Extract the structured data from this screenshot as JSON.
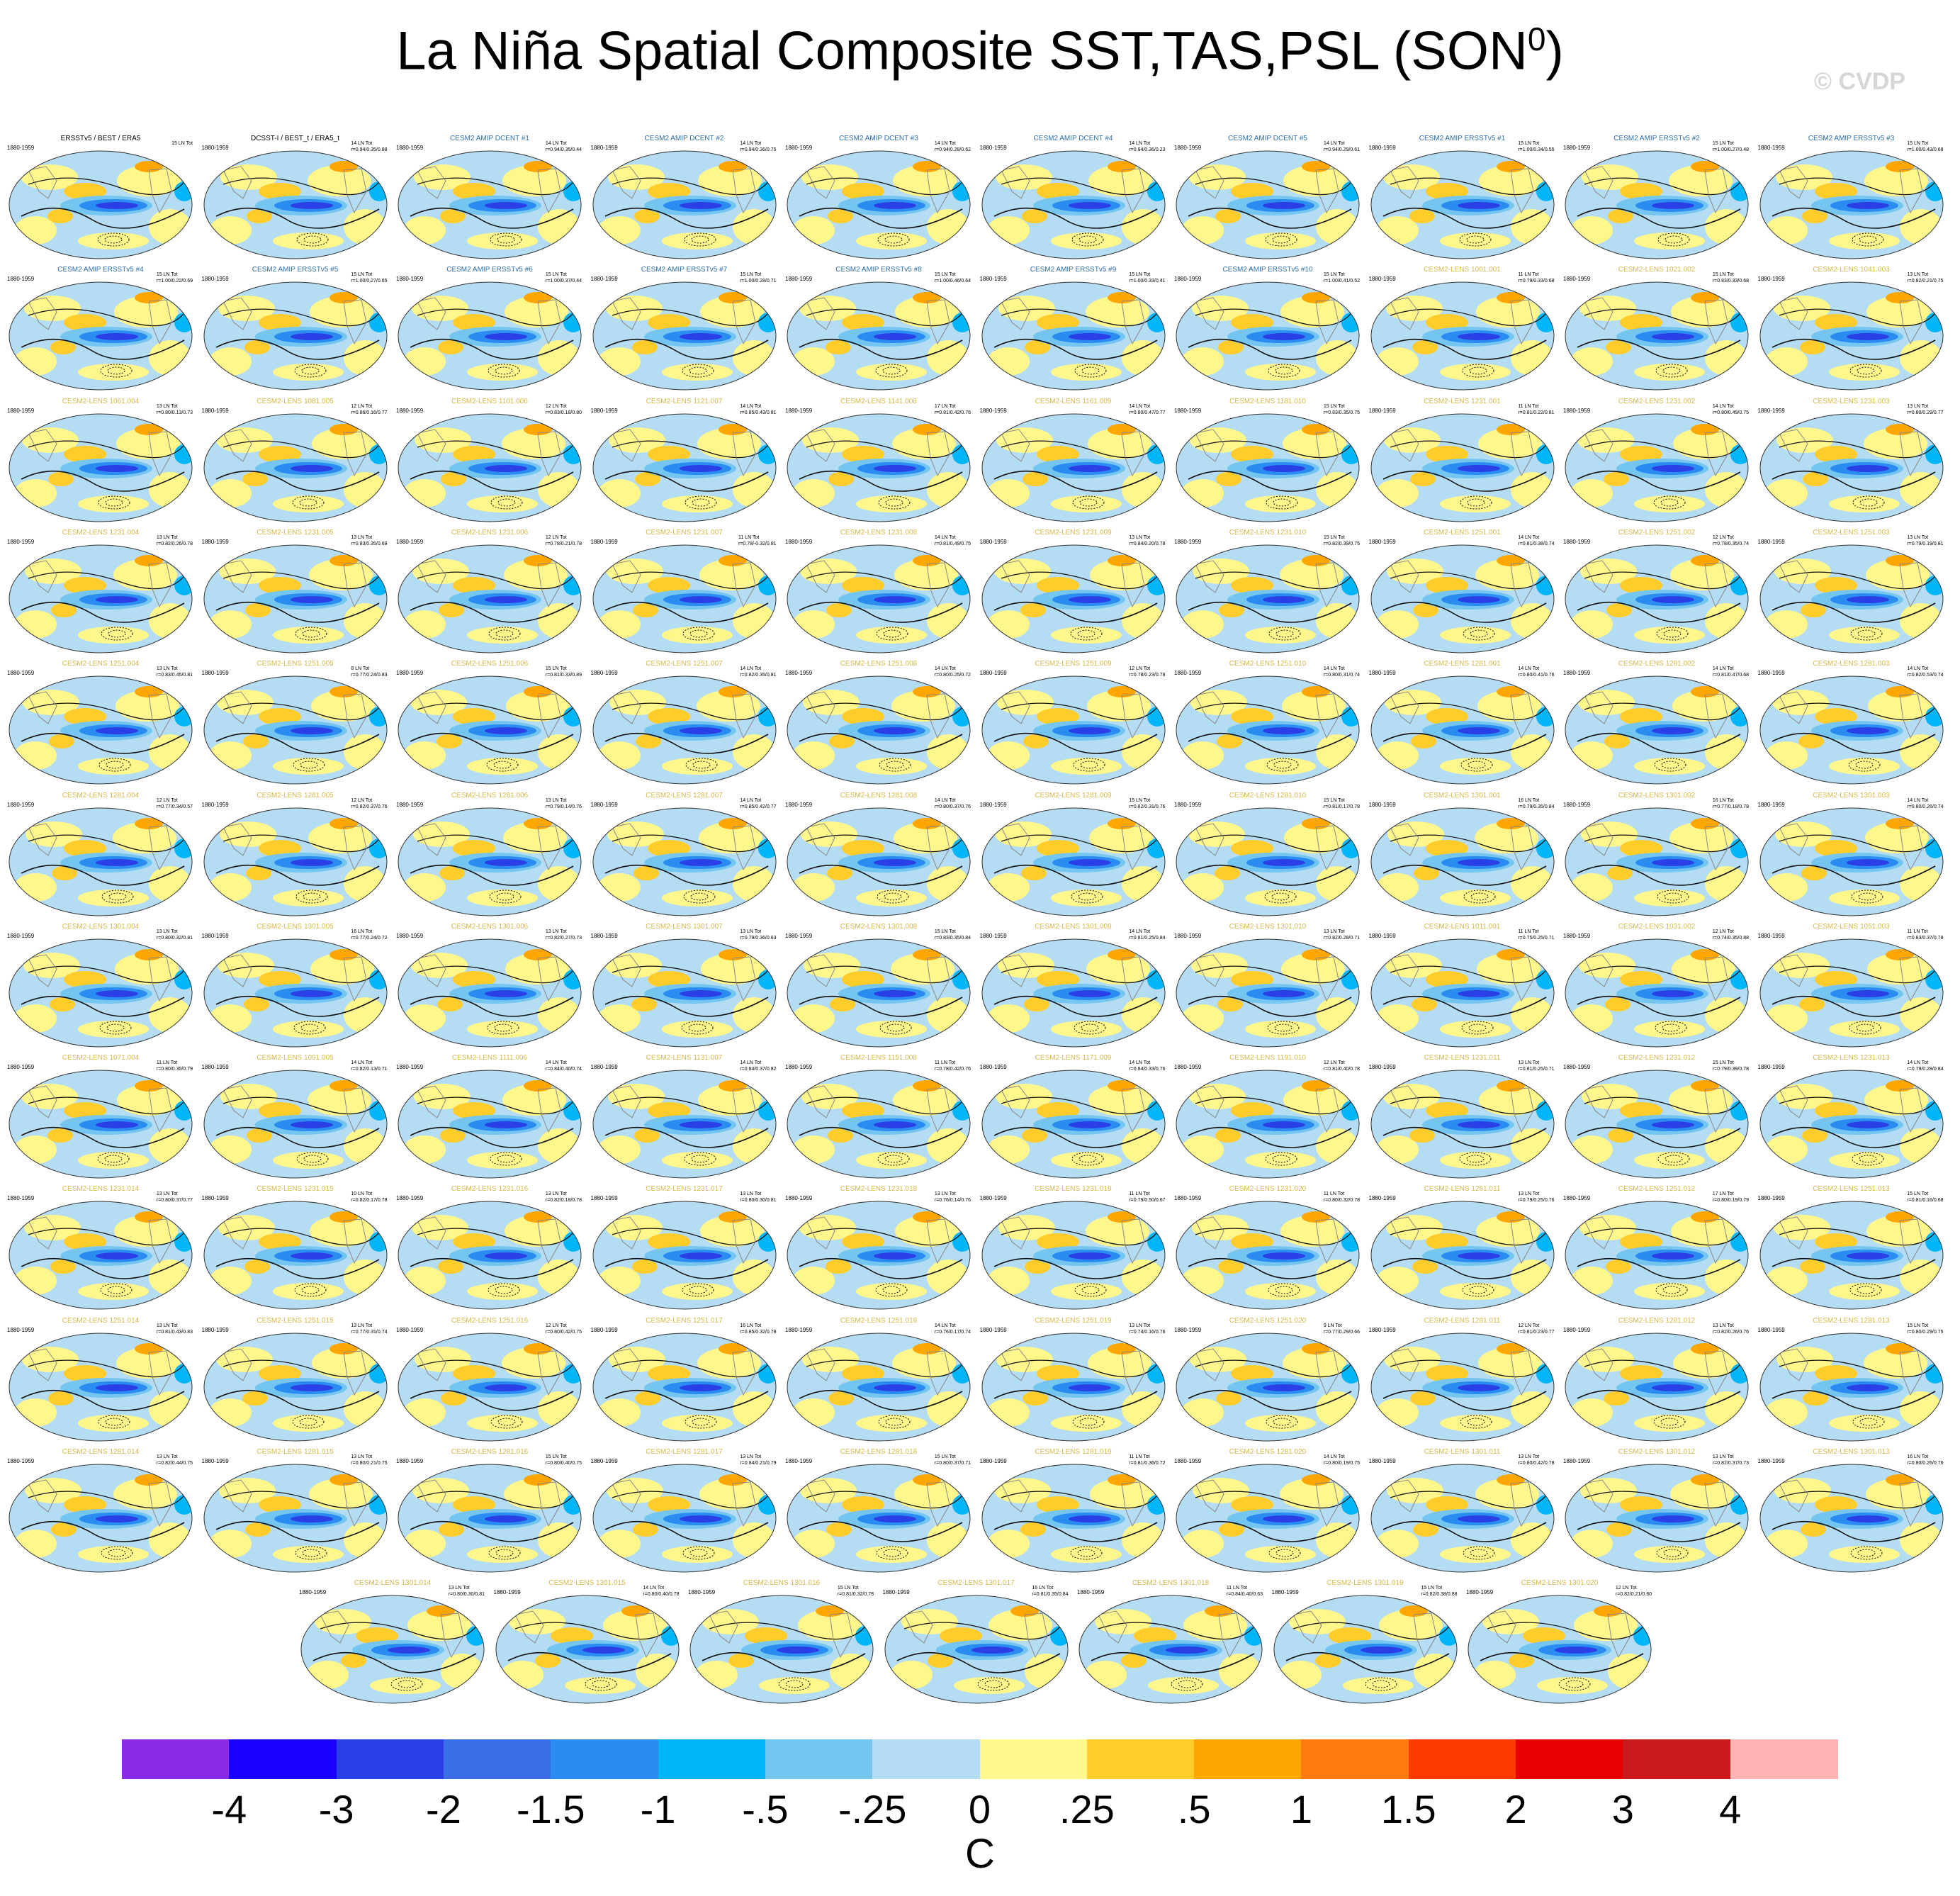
{
  "title": {
    "main": "La Niña Spatial Composite SST,TAS,PSL (SON",
    "superscript": "0",
    "close": ")"
  },
  "watermark": "© CVDP",
  "panels": [
    {
      "title": "ERSSTv5 / BEST / ERA5",
      "kind": "obs",
      "years": "1880-1959",
      "count": "15 LN Tot",
      "stats": ""
    },
    {
      "title": "DCSST-I / BEST_t / ERA5_t",
      "kind": "obs",
      "years": "1880-1959",
      "count": "14 LN Tot",
      "stats": "r=0.94/0.35/0.88"
    },
    {
      "title": "CESM2 AMIP DCENT #1",
      "kind": "amip",
      "years": "1880-1959",
      "count": "14 LN Tot",
      "stats": "r=0.94/0.35/0.44"
    },
    {
      "title": "CESM2 AMIP DCENT #2",
      "kind": "amip",
      "years": "1880-1959",
      "count": "14 LN Tot",
      "stats": "r=0.94/0.36/0.75"
    },
    {
      "title": "CESM2 AMIP DCENT #3",
      "kind": "amip",
      "years": "1880-1959",
      "count": "14 LN Tot",
      "stats": "r=0.94/0.28/0.62"
    },
    {
      "title": "CESM2 AMIP DCENT #4",
      "kind": "amip",
      "years": "1880-1959",
      "count": "14 LN Tot",
      "stats": "r=0.94/0.36/0.23"
    },
    {
      "title": "CESM2 AMIP DCENT #5",
      "kind": "amip",
      "years": "1880-1959",
      "count": "14 LN Tot",
      "stats": "r=0.94/0.29/0.61"
    },
    {
      "title": "CESM2 AMIP ERSSTv5 #1",
      "kind": "amip",
      "years": "1880-1959",
      "count": "15 LN Tot",
      "stats": "r=1.00/0.34/0.55"
    },
    {
      "title": "CESM2 AMIP ERSSTv5 #2",
      "kind": "amip",
      "years": "1880-1959",
      "count": "15 LN Tot",
      "stats": "r=1.00/0.27/0.48"
    },
    {
      "title": "CESM2 AMIP ERSSTv5 #3",
      "kind": "amip",
      "years": "1880-1959",
      "count": "15 LN Tot",
      "stats": "r=1.00/0.43/0.68"
    },
    {
      "title": "CESM2 AMIP ERSSTv5 #4",
      "kind": "amip",
      "years": "1880-1959",
      "count": "15 LN Tot",
      "stats": "r=1.00/0.22/0.69"
    },
    {
      "title": "CESM2 AMIP ERSSTv5 #5",
      "kind": "amip",
      "years": "1880-1959",
      "count": "15 LN Tot",
      "stats": "r=1.00/0.27/0.65"
    },
    {
      "title": "CESM2 AMIP ERSSTv5 #6",
      "kind": "amip",
      "years": "1880-1959",
      "count": "15 LN Tot",
      "stats": "r=1.00/0.37/0.44"
    },
    {
      "title": "CESM2 AMIP ERSSTv5 #7",
      "kind": "amip",
      "years": "1880-1959",
      "count": "15 LN Tot",
      "stats": "r=1.00/0.28/0.71"
    },
    {
      "title": "CESM2 AMIP ERSSTv5 #8",
      "kind": "amip",
      "years": "1880-1959",
      "count": "15 LN Tot",
      "stats": "r=1.00/0.46/0.64"
    },
    {
      "title": "CESM2 AMIP ERSSTv5 #9",
      "kind": "amip",
      "years": "1880-1959",
      "count": "15 LN Tot",
      "stats": "r=1.00/0.33/0.41"
    },
    {
      "title": "CESM2 AMIP ERSSTv5 #10",
      "kind": "amip",
      "years": "1880-1959",
      "count": "15 LN Tot",
      "stats": "r=1.00/0.41/0.52"
    },
    {
      "title": "CESM2-LENS 1001.001",
      "kind": "lens",
      "years": "1880-1959",
      "count": "11 LN Tot",
      "stats": "r=0.79/0.33/0.68"
    },
    {
      "title": "CESM2-LENS 1021.002",
      "kind": "lens",
      "years": "1880-1959",
      "count": "15 LN Tot",
      "stats": "r=0.83/0.33/0.68"
    },
    {
      "title": "CESM2-LENS 1041.003",
      "kind": "lens",
      "years": "1880-1959",
      "count": "13 LN Tot",
      "stats": "r=0.82/0.21/0.75"
    },
    {
      "title": "CESM2-LENS 1061.004",
      "kind": "lens",
      "years": "1880-1959",
      "count": "13 LN Tot",
      "stats": "r=0.80/0.13/0.73"
    },
    {
      "title": "CESM2-LENS 1081.005",
      "kind": "lens",
      "years": "1880-1959",
      "count": "12 LN Tot",
      "stats": "r=0.86/0.16/0.77"
    },
    {
      "title": "CESM2-LENS 1101.006",
      "kind": "lens",
      "years": "1880-1959",
      "count": "12 LN Tot",
      "stats": "r=0.83/0.18/0.80"
    },
    {
      "title": "CESM2-LENS 1121.007",
      "kind": "lens",
      "years": "1880-1959",
      "count": "14 LN Tot",
      "stats": "r=0.85/0.43/0.81"
    },
    {
      "title": "CESM2-LENS 1141.008",
      "kind": "lens",
      "years": "1880-1959",
      "count": "17 LN Tot",
      "stats": "r=0.81/0.42/0.76"
    },
    {
      "title": "CESM2-LENS 1161.009",
      "kind": "lens",
      "years": "1880-1959",
      "count": "14 LN Tot",
      "stats": "r=0.80/0.47/0.77"
    },
    {
      "title": "CESM2-LENS 1181.010",
      "kind": "lens",
      "years": "1880-1959",
      "count": "15 LN Tot",
      "stats": "r=0.83/0.35/0.75"
    },
    {
      "title": "CESM2-LENS 1231.001",
      "kind": "lens",
      "years": "1880-1959",
      "count": "11 LN Tot",
      "stats": "r=0.81/0.22/0.81"
    },
    {
      "title": "CESM2-LENS 1231.002",
      "kind": "lens",
      "years": "1880-1959",
      "count": "14 LN Tot",
      "stats": "r=0.80/0.49/0.75"
    },
    {
      "title": "CESM2-LENS 1231.003",
      "kind": "lens",
      "years": "1880-1959",
      "count": "13 LN Tot",
      "stats": "r=0.80/0.29/0.77"
    },
    {
      "title": "CESM2-LENS 1231.004",
      "kind": "lens",
      "years": "1880-1959",
      "count": "13 LN Tot",
      "stats": "r=0.82/0.26/0.78"
    },
    {
      "title": "CESM2-LENS 1231.005",
      "kind": "lens",
      "years": "1880-1959",
      "count": "13 LN Tot",
      "stats": "r=0.83/0.35/0.68"
    },
    {
      "title": "CESM2-LENS 1231.006",
      "kind": "lens",
      "years": "1880-1959",
      "count": "12 LN Tot",
      "stats": "r=0.78/0.21/0.78"
    },
    {
      "title": "CESM2-LENS 1231.007",
      "kind": "lens",
      "years": "1880-1959",
      "count": "11 LN Tot",
      "stats": "r=0.78/-0.32/0.81"
    },
    {
      "title": "CESM2-LENS 1231.008",
      "kind": "lens",
      "years": "1880-1959",
      "count": "14 LN Tot",
      "stats": "r=0.81/0.49/0.75"
    },
    {
      "title": "CESM2-LENS 1231.009",
      "kind": "lens",
      "years": "1880-1959",
      "count": "13 LN Tot",
      "stats": "r=0.84/0.20/0.78"
    },
    {
      "title": "CESM2-LENS 1231.010",
      "kind": "lens",
      "years": "1880-1959",
      "count": "15 LN Tot",
      "stats": "r=0.82/0.39/0.75"
    },
    {
      "title": "CESM2-LENS 1251.001",
      "kind": "lens",
      "years": "1880-1959",
      "count": "14 LN Tot",
      "stats": "r=0.81/0.38/0.74"
    },
    {
      "title": "CESM2-LENS 1251.002",
      "kind": "lens",
      "years": "1880-1959",
      "count": "12 LN Tot",
      "stats": "r=0.78/0.35/0.74"
    },
    {
      "title": "CESM2-LENS 1251.003",
      "kind": "lens",
      "years": "1880-1959",
      "count": "13 LN Tot",
      "stats": "r=0.79/0.19/0.81"
    },
    {
      "title": "CESM2-LENS 1251.004",
      "kind": "lens",
      "years": "1880-1959",
      "count": "13 LN Tot",
      "stats": "r=0.83/0.45/0.81"
    },
    {
      "title": "CESM2-LENS 1251.005",
      "kind": "lens",
      "years": "1880-1959",
      "count": "8 LN Tot",
      "stats": "r=0.77/0.24/0.83"
    },
    {
      "title": "CESM2-LENS 1251.006",
      "kind": "lens",
      "years": "1880-1959",
      "count": "15 LN Tot",
      "stats": "r=0.81/0.33/0.89"
    },
    {
      "title": "CESM2-LENS 1251.007",
      "kind": "lens",
      "years": "1880-1959",
      "count": "14 LN Tot",
      "stats": "r=0.82/0.35/0.81"
    },
    {
      "title": "CESM2-LENS 1251.008",
      "kind": "lens",
      "years": "1880-1959",
      "count": "14 LN Tot",
      "stats": "r=0.80/0.25/0.72"
    },
    {
      "title": "CESM2-LENS 1251.009",
      "kind": "lens",
      "years": "1880-1959",
      "count": "12 LN Tot",
      "stats": "r=0.78/0.23/0.78"
    },
    {
      "title": "CESM2-LENS 1251.010",
      "kind": "lens",
      "years": "1880-1959",
      "count": "14 LN Tot",
      "stats": "r=0.80/0.31/0.74"
    },
    {
      "title": "CESM2-LENS 1281.001",
      "kind": "lens",
      "years": "1880-1959",
      "count": "14 LN Tot",
      "stats": "r=0.80/0.41/0.76"
    },
    {
      "title": "CESM2-LENS 1281.002",
      "kind": "lens",
      "years": "1880-1959",
      "count": "14 LN Tot",
      "stats": "r=0.81/0.47/0.68"
    },
    {
      "title": "CESM2-LENS 1281.003",
      "kind": "lens",
      "years": "1880-1959",
      "count": "14 LN Tot",
      "stats": "r=0.82/0.53/0.74"
    },
    {
      "title": "CESM2-LENS 1281.004",
      "kind": "lens",
      "years": "1880-1959",
      "count": "12 LN Tot",
      "stats": "r=0.77/0.34/0.57"
    },
    {
      "title": "CESM2-LENS 1281.005",
      "kind": "lens",
      "years": "1880-1959",
      "count": "12 LN Tot",
      "stats": "r=0.82/0.37/0.76"
    },
    {
      "title": "CESM2-LENS 1281.006",
      "kind": "lens",
      "years": "1880-1959",
      "count": "13 LN Tot",
      "stats": "r=0.79/0.14/0.76"
    },
    {
      "title": "CESM2-LENS 1281.007",
      "kind": "lens",
      "years": "1880-1959",
      "count": "14 LN Tot",
      "stats": "r=0.85/0.42/0.77"
    },
    {
      "title": "CESM2-LENS 1281.008",
      "kind": "lens",
      "years": "1880-1959",
      "count": "14 LN Tot",
      "stats": "r=0.80/0.37/0.76"
    },
    {
      "title": "CESM2-LENS 1281.009",
      "kind": "lens",
      "years": "1880-1959",
      "count": "15 LN Tot",
      "stats": "r=0.82/0.31/0.76"
    },
    {
      "title": "CESM2-LENS 1281.010",
      "kind": "lens",
      "years": "1880-1959",
      "count": "15 LN Tot",
      "stats": "r=0.81/0.17/0.78"
    },
    {
      "title": "CESM2-LENS 1301.001",
      "kind": "lens",
      "years": "1880-1959",
      "count": "16 LN Tot",
      "stats": "r=0.79/0.35/0.84"
    },
    {
      "title": "CESM2-LENS 1301.002",
      "kind": "lens",
      "years": "1880-1959",
      "count": "16 LN Tot",
      "stats": "r=0.77/0.18/0.78"
    },
    {
      "title": "CESM2-LENS 1301.003",
      "kind": "lens",
      "years": "1880-1959",
      "count": "14 LN Tot",
      "stats": "r=0.80/0.26/0.74"
    },
    {
      "title": "CESM2-LENS 1301.004",
      "kind": "lens",
      "years": "1880-1959",
      "count": "13 LN Tot",
      "stats": "r=0.80/0.32/0.81"
    },
    {
      "title": "CESM2-LENS 1301.005",
      "kind": "lens",
      "years": "1880-1959",
      "count": "16 LN Tot",
      "stats": "r=0.77/0.24/0.72"
    },
    {
      "title": "CESM2-LENS 1301.006",
      "kind": "lens",
      "years": "1880-1959",
      "count": "13 LN Tot",
      "stats": "r=0.82/0.27/0.73"
    },
    {
      "title": "CESM2-LENS 1301.007",
      "kind": "lens",
      "years": "1880-1959",
      "count": "13 LN Tot",
      "stats": "r=0.79/0.36/0.63"
    },
    {
      "title": "CESM2-LENS 1301.008",
      "kind": "lens",
      "years": "1880-1959",
      "count": "15 LN Tot",
      "stats": "r=0.83/0.35/0.84"
    },
    {
      "title": "CESM2-LENS 1301.009",
      "kind": "lens",
      "years": "1880-1959",
      "count": "14 LN Tot",
      "stats": "r=0.81/0.25/0.84"
    },
    {
      "title": "CESM2-LENS 1301.010",
      "kind": "lens",
      "years": "1880-1959",
      "count": "13 LN Tot",
      "stats": "r=0.82/0.28/0.71"
    },
    {
      "title": "CESM2-LENS 1011.001",
      "kind": "lens",
      "years": "1880-1959",
      "count": "11 LN Tot",
      "stats": "r=0.75/0.25/0.71"
    },
    {
      "title": "CESM2-LENS 1031.002",
      "kind": "lens",
      "years": "1880-1959",
      "count": "12 LN Tot",
      "stats": "r=0.74/0.35/0.88"
    },
    {
      "title": "CESM2-LENS 1051.003",
      "kind": "lens",
      "years": "1880-1959",
      "count": "11 LN Tot",
      "stats": "r=0.83/0.37/0.78"
    },
    {
      "title": "CESM2-LENS 1071.004",
      "kind": "lens",
      "years": "1880-1959",
      "count": "11 LN Tot",
      "stats": "r=0.80/0.30/0.79"
    },
    {
      "title": "CESM2-LENS 1091.005",
      "kind": "lens",
      "years": "1880-1959",
      "count": "14 LN Tot",
      "stats": "r=0.82/0.13/0.71"
    },
    {
      "title": "CESM2-LENS 1111.006",
      "kind": "lens",
      "years": "1880-1959",
      "count": "14 LN Tot",
      "stats": "r=0.84/0.40/0.74"
    },
    {
      "title": "CESM2-LENS 1131.007",
      "kind": "lens",
      "years": "1880-1959",
      "count": "14 LN Tot",
      "stats": "r=0.84/0.37/0.82"
    },
    {
      "title": "CESM2-LENS 1151.008",
      "kind": "lens",
      "years": "1880-1959",
      "count": "11 LN Tot",
      "stats": "r=0.78/0.42/0.76"
    },
    {
      "title": "CESM2-LENS 1171.009",
      "kind": "lens",
      "years": "1880-1959",
      "count": "14 LN Tot",
      "stats": "r=0.84/0.33/0.76"
    },
    {
      "title": "CESM2-LENS 1191.010",
      "kind": "lens",
      "years": "1880-1959",
      "count": "12 LN Tot",
      "stats": "r=0.81/0.40/0.78"
    },
    {
      "title": "CESM2-LENS 1231.011",
      "kind": "lens",
      "years": "1880-1959",
      "count": "13 LN Tot",
      "stats": "r=0.81/0.25/0.71"
    },
    {
      "title": "CESM2-LENS 1231.012",
      "kind": "lens",
      "years": "1880-1959",
      "count": "15 LN Tot",
      "stats": "r=0.79/0.39/0.78"
    },
    {
      "title": "CESM2-LENS 1231.013",
      "kind": "lens",
      "years": "1880-1959",
      "count": "14 LN Tot",
      "stats": "r=0.79/0.28/0.84"
    },
    {
      "title": "CESM2-LENS 1231.014",
      "kind": "lens",
      "years": "1880-1959",
      "count": "13 LN Tot",
      "stats": "r=0.80/0.37/0.77"
    },
    {
      "title": "CESM2-LENS 1231.015",
      "kind": "lens",
      "years": "1880-1959",
      "count": "10 LN Tot",
      "stats": "r=0.82/0.17/0.78"
    },
    {
      "title": "CESM2-LENS 1231.016",
      "kind": "lens",
      "years": "1880-1959",
      "count": "13 LN Tot",
      "stats": "r=0.82/0.18/0.78"
    },
    {
      "title": "CESM2-LENS 1231.017",
      "kind": "lens",
      "years": "1880-1959",
      "count": "13 LN Tot",
      "stats": "r=0.80/0.30/0.81"
    },
    {
      "title": "CESM2-LENS 1231.018",
      "kind": "lens",
      "years": "1880-1959",
      "count": "13 LN Tot",
      "stats": "r=0.76/0.14/0.76"
    },
    {
      "title": "CESM2-LENS 1231.019",
      "kind": "lens",
      "years": "1880-1959",
      "count": "11 LN Tot",
      "stats": "r=0.79/0.50/0.67"
    },
    {
      "title": "CESM2-LENS 1231.020",
      "kind": "lens",
      "years": "1880-1959",
      "count": "11 LN Tot",
      "stats": "r=0.80/0.32/0.78"
    },
    {
      "title": "CESM2-LENS 1251.011",
      "kind": "lens",
      "years": "1880-1959",
      "count": "13 LN Tot",
      "stats": "r=0.79/0.25/0.76"
    },
    {
      "title": "CESM2-LENS 1251.012",
      "kind": "lens",
      "years": "1880-1959",
      "count": "17 LN Tot",
      "stats": "r=0.80/0.19/0.79"
    },
    {
      "title": "CESM2-LENS 1251.013",
      "kind": "lens",
      "years": "1880-1959",
      "count": "15 LN Tot",
      "stats": "r=0.81/0.16/0.68"
    },
    {
      "title": "CESM2-LENS 1251.014",
      "kind": "lens",
      "years": "1880-1959",
      "count": "13 LN Tot",
      "stats": "r=0.81/0.43/0.83"
    },
    {
      "title": "CESM2-LENS 1251.015",
      "kind": "lens",
      "years": "1880-1959",
      "count": "13 LN Tot",
      "stats": "r=0.77/0.31/0.74"
    },
    {
      "title": "CESM2-LENS 1251.016",
      "kind": "lens",
      "years": "1880-1959",
      "count": "12 LN Tot",
      "stats": "r=0.80/0.42/0.75"
    },
    {
      "title": "CESM2-LENS 1251.017",
      "kind": "lens",
      "years": "1880-1959",
      "count": "16 LN Tot",
      "stats": "r=0.85/0.32/0.78"
    },
    {
      "title": "CESM2-LENS 1251.018",
      "kind": "lens",
      "years": "1880-1959",
      "count": "14 LN Tot",
      "stats": "r=0.76/0.17/0.74"
    },
    {
      "title": "CESM2-LENS 1251.019",
      "kind": "lens",
      "years": "1880-1959",
      "count": "13 LN Tot",
      "stats": "r=0.74/0.16/0.76"
    },
    {
      "title": "CESM2-LENS 1251.020",
      "kind": "lens",
      "years": "1880-1959",
      "count": "9 LN Tot",
      "stats": "r=0.77/0.29/0.66"
    },
    {
      "title": "CESM2-LENS 1281.011",
      "kind": "lens",
      "years": "1880-1959",
      "count": "12 LN Tot",
      "stats": "r=0.81/0.23/0.77"
    },
    {
      "title": "CESM2-LENS 1281.012",
      "kind": "lens",
      "years": "1880-1959",
      "count": "13 LN Tot",
      "stats": "r=0.82/0.26/0.76"
    },
    {
      "title": "CESM2-LENS 1281.013",
      "kind": "lens",
      "years": "1880-1959",
      "count": "15 LN Tot",
      "stats": "r=0.80/0.29/0.75"
    },
    {
      "title": "CESM2-LENS 1281.014",
      "kind": "lens",
      "years": "1880-1959",
      "count": "13 LN Tot",
      "stats": "r=0.82/0.44/0.75"
    },
    {
      "title": "CESM2-LENS 1281.015",
      "kind": "lens",
      "years": "1880-1959",
      "count": "13 LN Tot",
      "stats": "r=0.80/0.21/0.75"
    },
    {
      "title": "CESM2-LENS 1281.016",
      "kind": "lens",
      "years": "1880-1959",
      "count": "15 LN Tot",
      "stats": "r=0.80/0.40/0.75"
    },
    {
      "title": "CESM2-LENS 1281.017",
      "kind": "lens",
      "years": "1880-1959",
      "count": "13 LN Tot",
      "stats": "r=0.84/0.21/0.79"
    },
    {
      "title": "CESM2-LENS 1281.018",
      "kind": "lens",
      "years": "1880-1959",
      "count": "15 LN Tot",
      "stats": "r=0.80/0.37/0.71"
    },
    {
      "title": "CESM2-LENS 1281.019",
      "kind": "lens",
      "years": "1880-1959",
      "count": "11 LN Tot",
      "stats": "r=0.81/0.36/0.72"
    },
    {
      "title": "CESM2-LENS 1281.020",
      "kind": "lens",
      "years": "1880-1959",
      "count": "14 LN Tot",
      "stats": "r=0.80/0.19/0.75"
    },
    {
      "title": "CESM2-LENS 1301.011",
      "kind": "lens",
      "years": "1880-1959",
      "count": "13 LN Tot",
      "stats": "r=0.80/0.42/0.78"
    },
    {
      "title": "CESM2-LENS 1301.012",
      "kind": "lens",
      "years": "1880-1959",
      "count": "13 LN Tot",
      "stats": "r=0.82/0.37/0.73"
    },
    {
      "title": "CESM2-LENS 1301.013",
      "kind": "lens",
      "years": "1880-1959",
      "count": "16 LN Tot",
      "stats": "r=0.80/0.26/0.76"
    },
    {
      "title": "CESM2-LENS 1301.014",
      "kind": "lens",
      "years": "1880-1959",
      "count": "13 LN Tot",
      "stats": "r=0.80/0.30/0.81"
    },
    {
      "title": "CESM2-LENS 1301.015",
      "kind": "lens",
      "years": "1880-1959",
      "count": "14 LN Tot",
      "stats": "r=0.80/0.40/0.78"
    },
    {
      "title": "CESM2-LENS 1301.016",
      "kind": "lens",
      "years": "1880-1959",
      "count": "15 LN Tot",
      "stats": "r=0.81/0.32/0.78"
    },
    {
      "title": "CESM2-LENS 1301.017",
      "kind": "lens",
      "years": "1880-1959",
      "count": "16 LN Tot",
      "stats": "r=0.81/0.35/0.84"
    },
    {
      "title": "CESM2-LENS 1301.018",
      "kind": "lens",
      "years": "1880-1959",
      "count": "11 LN Tot",
      "stats": "r=0.84/0.40/0.63"
    },
    {
      "title": "CESM2-LENS 1301.019",
      "kind": "lens",
      "years": "1880-1959",
      "count": "15 LN Tot",
      "stats": "r=0.82/0.38/0.88"
    },
    {
      "title": "CESM2-LENS 1301.020",
      "kind": "lens",
      "years": "1880-1959",
      "count": "12 LN Tot",
      "stats": "r=0.82/0.21/0.80"
    }
  ],
  "colorbar": {
    "colors": [
      "#8a2be8",
      "#1a00ff",
      "#2a3fe6",
      "#3a6ee6",
      "#2a8cf0",
      "#00b6f8",
      "#74c6f0",
      "#b4dcf2",
      "#fff68c",
      "#ffcc2a",
      "#ffa600",
      "#ff7a10",
      "#ff3a00",
      "#e60000",
      "#c81a1a",
      "#ffb4b4"
    ],
    "labels": [
      "-4",
      "-3",
      "-2",
      "-1.5",
      "-1",
      "-.5",
      "-.25",
      "0",
      ".25",
      ".5",
      "1",
      "1.5",
      "2",
      "3",
      "4"
    ],
    "units": "C"
  }
}
